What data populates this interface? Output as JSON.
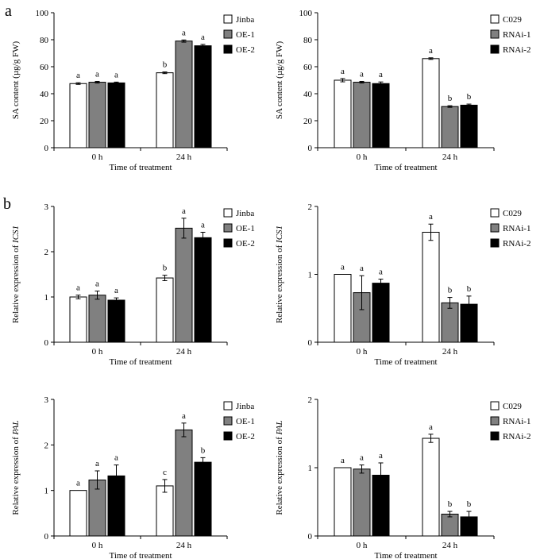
{
  "figure": {
    "panel_labels": [
      "a",
      "b"
    ]
  },
  "styles": {
    "series_fills": [
      "#ffffff",
      "#808080",
      "#000000"
    ],
    "stroke": "#000000"
  },
  "chart_data": [
    {
      "type": "bar",
      "panel": "a",
      "categories": [
        "0 h",
        "24 h"
      ],
      "xlabel": "Time of treatment",
      "ylabel": "SA content (µg/g FW)",
      "ylabel_plain": "",
      "ylabel_italic": "",
      "ylim": [
        0,
        100
      ],
      "yticks": [
        "0",
        "20",
        "40",
        "60",
        "80",
        "100"
      ],
      "tick_values": [
        0,
        20,
        40,
        60,
        80,
        100
      ],
      "legend_position": "top-right",
      "series": [
        {
          "name": "Jinba",
          "values": [
            47.5,
            55.5
          ],
          "errors": [
            0.6,
            0.6
          ],
          "letters": [
            "a",
            "b"
          ]
        },
        {
          "name": "OE-1",
          "values": [
            48.5,
            79.0
          ],
          "errors": [
            0.6,
            0.8
          ],
          "letters": [
            "a",
            "a"
          ]
        },
        {
          "name": "OE-2",
          "values": [
            48.0,
            75.5
          ],
          "errors": [
            0.6,
            1.0
          ],
          "letters": [
            "a",
            "a"
          ]
        }
      ]
    },
    {
      "type": "bar",
      "panel": "a",
      "categories": [
        "0 h",
        "24 h"
      ],
      "xlabel": "Time of treatment",
      "ylabel": "SA content (µg/g FW)",
      "ylabel_plain": "",
      "ylabel_italic": "",
      "ylim": [
        0,
        100
      ],
      "yticks": [
        "0",
        "20",
        "40",
        "60",
        "80",
        "100"
      ],
      "tick_values": [
        0,
        20,
        40,
        60,
        80,
        100
      ],
      "legend_position": "top-right",
      "series": [
        {
          "name": "C029",
          "values": [
            50.0,
            66.0
          ],
          "errors": [
            1.2,
            0.6
          ],
          "letters": [
            "a",
            "a"
          ]
        },
        {
          "name": "RNAi-1",
          "values": [
            48.5,
            30.5
          ],
          "errors": [
            0.6,
            0.6
          ],
          "letters": [
            "a",
            "b"
          ]
        },
        {
          "name": "RNAi-2",
          "values": [
            47.5,
            31.5
          ],
          "errors": [
            1.2,
            0.8
          ],
          "letters": [
            "a",
            "b"
          ]
        }
      ]
    },
    {
      "type": "bar",
      "panel": "b",
      "categories": [
        "0 h",
        "24 h"
      ],
      "xlabel": "Time of treatment",
      "ylabel": "Relative expression of ICS1",
      "ylabel_plain": "Relative expression of ",
      "ylabel_italic": "ICS1",
      "ylim": [
        0,
        3
      ],
      "yticks": [
        "0",
        "1",
        "2",
        "3"
      ],
      "tick_values": [
        0,
        1,
        2,
        3
      ],
      "legend_position": "top-right",
      "series": [
        {
          "name": "Jinba",
          "values": [
            1.0,
            1.42
          ],
          "errors": [
            0.04,
            0.06
          ],
          "letters": [
            "a",
            "b"
          ]
        },
        {
          "name": "OE-1",
          "values": [
            1.04,
            2.52
          ],
          "errors": [
            0.09,
            0.22
          ],
          "letters": [
            "a",
            "a"
          ]
        },
        {
          "name": "OE-2",
          "values": [
            0.93,
            2.31
          ],
          "errors": [
            0.05,
            0.12
          ],
          "letters": [
            "a",
            "a"
          ]
        }
      ]
    },
    {
      "type": "bar",
      "panel": "b",
      "categories": [
        "0 h",
        "24 h"
      ],
      "xlabel": "Time of treatment",
      "ylabel": "Relative expression of ICS1",
      "ylabel_plain": "Relative expression of ",
      "ylabel_italic": "ICS1",
      "ylim": [
        0,
        2
      ],
      "yticks": [
        "0",
        "1",
        "2"
      ],
      "tick_values": [
        0,
        1,
        2
      ],
      "legend_position": "top-right",
      "series": [
        {
          "name": "C029",
          "values": [
            1.0,
            1.62
          ],
          "errors": [
            0.0,
            0.12
          ],
          "letters": [
            "a",
            "a"
          ]
        },
        {
          "name": "RNAi-1",
          "values": [
            0.73,
            0.58
          ],
          "errors": [
            0.25,
            0.08
          ],
          "letters": [
            "a",
            "b"
          ]
        },
        {
          "name": "RNAi-2",
          "values": [
            0.87,
            0.56
          ],
          "errors": [
            0.06,
            0.12
          ],
          "letters": [
            "a",
            "b"
          ]
        }
      ]
    },
    {
      "type": "bar",
      "panel": "b",
      "categories": [
        "0 h",
        "24 h"
      ],
      "xlabel": "Time of treatment",
      "ylabel": "Relative expression of PAL",
      "ylabel_plain": "Relative expression of ",
      "ylabel_italic": "PAL",
      "ylim": [
        0,
        3
      ],
      "yticks": [
        "0",
        "1",
        "2",
        "3"
      ],
      "tick_values": [
        0,
        1,
        2,
        3
      ],
      "legend_position": "top-right",
      "series": [
        {
          "name": "Jinba",
          "values": [
            1.0,
            1.1
          ],
          "errors": [
            0.0,
            0.14
          ],
          "letters": [
            "a",
            "c"
          ]
        },
        {
          "name": "OE-1",
          "values": [
            1.23,
            2.33
          ],
          "errors": [
            0.2,
            0.15
          ],
          "letters": [
            "a",
            "a"
          ]
        },
        {
          "name": "OE-2",
          "values": [
            1.32,
            1.62
          ],
          "errors": [
            0.24,
            0.1
          ],
          "letters": [
            "a",
            "b"
          ]
        }
      ]
    },
    {
      "type": "bar",
      "panel": "b",
      "categories": [
        "0 h",
        "24 h"
      ],
      "xlabel": "Time of treatment",
      "ylabel": "Relative expression of PAL",
      "ylabel_plain": "Relative expression of ",
      "ylabel_italic": "PAL",
      "ylim": [
        0,
        2
      ],
      "yticks": [
        "0",
        "1",
        "2"
      ],
      "tick_values": [
        0,
        1,
        2
      ],
      "legend_position": "top-right",
      "series": [
        {
          "name": "C029",
          "values": [
            1.0,
            1.43
          ],
          "errors": [
            0.0,
            0.06
          ],
          "letters": [
            "a",
            "a"
          ]
        },
        {
          "name": "RNAi-1",
          "values": [
            0.98,
            0.32
          ],
          "errors": [
            0.06,
            0.04
          ],
          "letters": [
            "a",
            "b"
          ]
        },
        {
          "name": "RNAi-2",
          "values": [
            0.89,
            0.28
          ],
          "errors": [
            0.18,
            0.08
          ],
          "letters": [
            "a",
            "b"
          ]
        }
      ]
    }
  ]
}
